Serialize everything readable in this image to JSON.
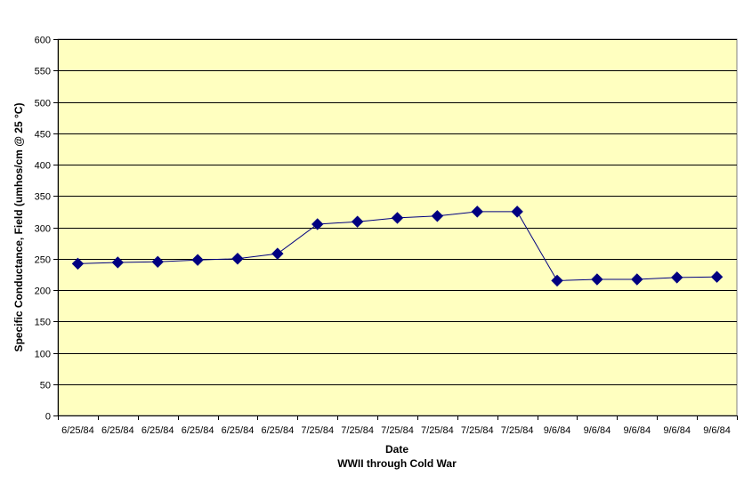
{
  "chart_data": {
    "type": "line",
    "xlabel": "Date",
    "xlabel_sub": "WWII through Cold War",
    "ylabel": "Specific Conductance, Field (umhos/cm @ 25 °C)",
    "ylim": [
      0,
      600
    ],
    "yticks": [
      0,
      50,
      100,
      150,
      200,
      250,
      300,
      350,
      400,
      450,
      500,
      550,
      600
    ],
    "categories": [
      "6/25/84",
      "6/25/84",
      "6/25/84",
      "6/25/84",
      "6/25/84",
      "6/25/84",
      "7/25/84",
      "7/25/84",
      "7/25/84",
      "7/25/84",
      "7/25/84",
      "7/25/84",
      "9/6/84",
      "9/6/84",
      "9/6/84",
      "9/6/84",
      "9/6/84"
    ],
    "series": [
      {
        "values": [
          242,
          244,
          245,
          248,
          250,
          258,
          305,
          309,
          315,
          318,
          325,
          325,
          215,
          217,
          217,
          220,
          221
        ]
      }
    ],
    "grid": true,
    "legend": "none",
    "colors": {
      "plot_background": "#FFFFC0",
      "series": "#000080",
      "gridline": "#000000"
    }
  }
}
